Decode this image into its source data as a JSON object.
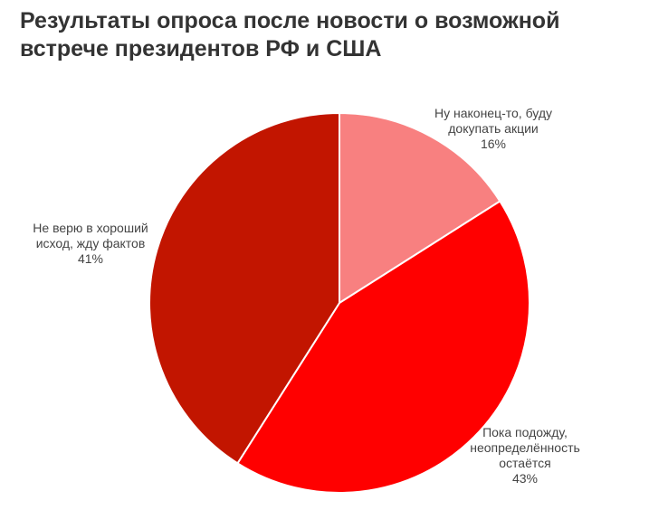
{
  "chart_data": {
    "type": "pie",
    "title": "Результаты опроса после новости о возможной встрече президентов РФ и США",
    "categories": [
      "Ну наконец-то, буду докупать акции",
      "Пока подожду, неопределённость остаётся",
      "Не верю в хороший исход, жду фактов"
    ],
    "values": [
      16,
      43,
      41
    ],
    "value_labels": [
      "16%",
      "43%",
      "41%"
    ],
    "colors": [
      "#f88080",
      "#ff0000",
      "#c21500"
    ]
  }
}
